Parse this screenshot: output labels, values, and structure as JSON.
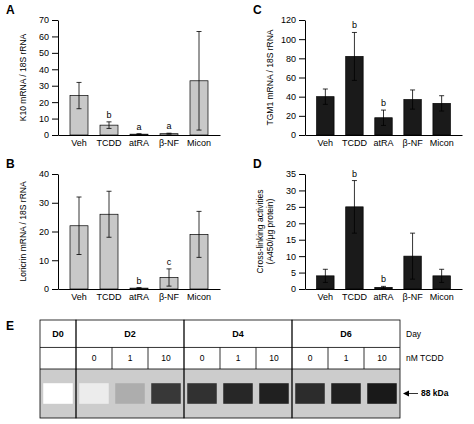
{
  "chart_data": [
    {
      "type": "bar",
      "title": "A",
      "categories": [
        "Veh",
        "TCDD",
        "atRA",
        "β-NF",
        "Micon"
      ],
      "values": [
        24,
        6,
        0.5,
        0.8,
        33
      ],
      "errors": [
        8,
        2,
        0.3,
        0.3,
        30
      ],
      "annotations": [
        null,
        "b",
        "a",
        "a",
        null
      ],
      "ylabel": "K10 mRNA / 18S rRNA",
      "ylim": [
        0,
        70
      ],
      "yticks": [
        0,
        10,
        20,
        30,
        40,
        50,
        60,
        70
      ],
      "color": "#c8c8c8"
    },
    {
      "type": "bar",
      "title": "B",
      "categories": [
        "Veh",
        "TCDD",
        "atRA",
        "β-NF",
        "Micon"
      ],
      "values": [
        22,
        26,
        0.3,
        4,
        19
      ],
      "errors": [
        10,
        8,
        0.2,
        3,
        8
      ],
      "annotations": [
        null,
        null,
        "b",
        "c",
        null
      ],
      "ylabel": "Loricrin mRNA / 18S rRNA",
      "ylim": [
        0,
        40
      ],
      "yticks": [
        0,
        10,
        20,
        30,
        40
      ],
      "color": "#c8c8c8"
    },
    {
      "type": "bar",
      "title": "C",
      "categories": [
        "Veh",
        "TCDD",
        "atRA",
        "β-NF",
        "Micon"
      ],
      "values": [
        40,
        82,
        18,
        37,
        33
      ],
      "errors": [
        8,
        25,
        8,
        10,
        8
      ],
      "annotations": [
        null,
        "b",
        "b",
        null,
        null
      ],
      "ylabel": "TGM1 mRNA / 18S rRNA",
      "ylim": [
        0,
        120
      ],
      "yticks": [
        0,
        20,
        40,
        60,
        80,
        100,
        120
      ],
      "color": "#1a1a1a"
    },
    {
      "type": "bar",
      "title": "D",
      "categories": [
        "Veh",
        "TCDD",
        "atRA",
        "β-NF",
        "Micon"
      ],
      "values": [
        4,
        25,
        0.5,
        10,
        4
      ],
      "errors": [
        2,
        8,
        0.3,
        7,
        2
      ],
      "annotations": [
        null,
        "b",
        "b",
        null,
        null
      ],
      "ylabel": "Cross-linking activities\n(A450/μg protein)",
      "ylim": [
        0,
        35
      ],
      "yticks": [
        0,
        5,
        10,
        15,
        20,
        25,
        30,
        35
      ],
      "color": "#1a1a1a"
    },
    {
      "type": "blot",
      "title": "E",
      "days": [
        "D0",
        "D2",
        "D4",
        "D6"
      ],
      "lane_counts": [
        1,
        3,
        3,
        3
      ],
      "categories": [
        null,
        "0",
        "1",
        "10",
        "0",
        "1",
        "10",
        "0",
        "1",
        "10"
      ],
      "values": [
        0.0,
        0.08,
        0.35,
        0.85,
        0.88,
        0.92,
        0.95,
        0.9,
        0.95,
        0.98
      ],
      "day_label": "Day",
      "conc_label": "nM TCDD",
      "annotation": "88 kDa"
    }
  ]
}
